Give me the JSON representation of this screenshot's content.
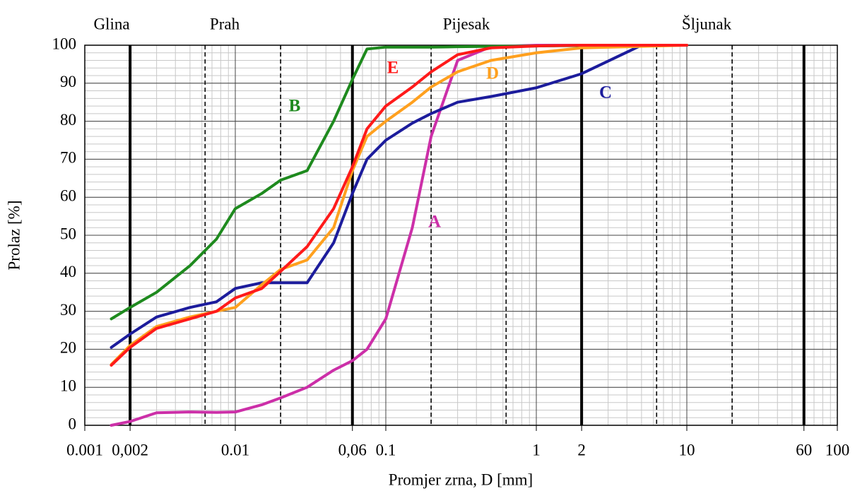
{
  "chart_data": {
    "type": "line",
    "x_label": "Promjer zrna, D [mm]",
    "y_label": "Prolaz [%]",
    "x_scale": "log",
    "grid": true,
    "minor_grid": true,
    "xlim": [
      0.001,
      100
    ],
    "ylim": [
      0,
      100
    ],
    "xticks": [
      0.001,
      {
        "value": 0.002,
        "label": "0,002"
      },
      0.01,
      {
        "value": 0.06,
        "label": "0,06"
      },
      0.1,
      1,
      2,
      10,
      60,
      100
    ],
    "yticks": [
      0,
      10,
      20,
      30,
      40,
      50,
      60,
      70,
      80,
      90,
      100
    ],
    "zones": [
      "Glina",
      "Prah",
      "Pijesak",
      "Šljunak"
    ],
    "major_boundaries": [
      0.002,
      0.06,
      2,
      60
    ],
    "minor_boundaries": [
      0.0063,
      0.02,
      0.2,
      0.63,
      6.3,
      20
    ],
    "x": [
      0.0015,
      0.002,
      0.003,
      0.005,
      0.0075,
      0.01,
      0.015,
      0.02,
      0.03,
      0.045,
      0.06,
      0.075,
      0.1,
      0.15,
      0.2,
      0.3,
      0.5,
      1,
      2,
      5,
      10
    ],
    "series": [
      {
        "name": "A",
        "color": "#cc2fa8",
        "values": [
          0,
          1,
          3.3,
          3.5,
          3.4,
          3.5,
          5.4,
          7.2,
          10,
          14.5,
          17,
          20,
          28,
          52,
          76,
          96,
          99.6,
          100,
          100,
          100,
          100
        ]
      },
      {
        "name": "B",
        "color": "#1e8a1e",
        "values": [
          28,
          31,
          35,
          42,
          49,
          57,
          61,
          64.5,
          67,
          80,
          91,
          99,
          99.5,
          99.5,
          99.5,
          99.6,
          99.7,
          99.8,
          99.9,
          100,
          100
        ]
      },
      {
        "name": "C",
        "color": "#1c1c9c",
        "values": [
          20.5,
          24,
          28.5,
          31,
          32.5,
          36,
          37.5,
          37.5,
          37.5,
          48,
          61,
          70,
          75,
          79.5,
          82,
          85,
          86.5,
          88.8,
          92.5,
          100,
          100
        ]
      },
      {
        "name": "D",
        "color": "#ffa01e",
        "values": [
          16,
          21,
          26,
          28.5,
          30,
          31,
          37,
          41,
          43.5,
          52,
          67,
          76,
          80,
          85,
          89,
          93,
          96,
          98,
          99.3,
          99.7,
          100
        ]
      },
      {
        "name": "E",
        "color": "#ff1a1a",
        "values": [
          15.8,
          20.5,
          25.5,
          28,
          30,
          33.5,
          36,
          40.5,
          47,
          57,
          68,
          78,
          84,
          89,
          93,
          97.5,
          99.3,
          99.8,
          100,
          100,
          100
        ]
      }
    ]
  }
}
